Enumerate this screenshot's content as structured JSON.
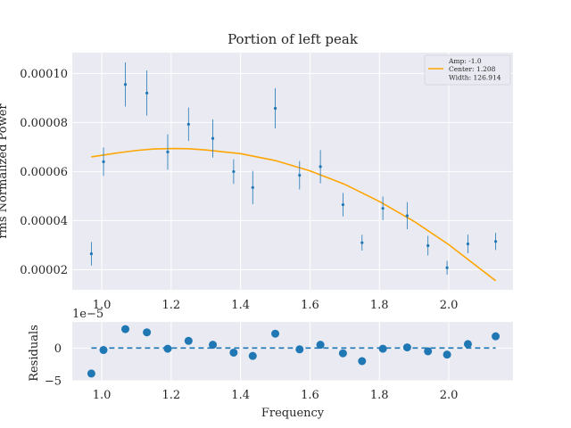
{
  "chart_data": [
    {
      "type": "scatter",
      "title": "Portion of left peak",
      "xlabel": "",
      "ylabel": "rms Normalized Power",
      "xlim": [
        0.915,
        2.185
      ],
      "ylim": [
        1.18e-05,
        0.0001085
      ],
      "xticks": [
        1.0,
        1.2,
        1.4,
        1.6,
        1.8,
        2.0
      ],
      "xtick_labels": [
        "1.0",
        "1.2",
        "1.4",
        "1.6",
        "1.8",
        "2.0"
      ],
      "yticks": [
        2e-05,
        4e-05,
        6e-05,
        8e-05,
        0.0001
      ],
      "ytick_labels": [
        "0.00002",
        "0.00004",
        "0.00006",
        "0.00008",
        "0.00010"
      ],
      "grid": true,
      "legend_position": "top-right",
      "legend": {
        "lines": [
          "Amp: -1.0",
          "Center: 1.208",
          "Width: 126.914"
        ]
      },
      "colors": {
        "points": "#1f77b4",
        "model": "#ffa500",
        "background": "#eaeaf2",
        "grid": "#ffffff"
      },
      "series": [
        {
          "name": "data",
          "kind": "errorbar",
          "x": [
            0.97,
            1.005,
            1.068,
            1.13,
            1.19,
            1.25,
            1.32,
            1.38,
            1.435,
            1.5,
            1.57,
            1.63,
            1.695,
            1.75,
            1.81,
            1.88,
            1.94,
            1.995,
            2.055,
            2.135
          ],
          "y": [
            2.65e-05,
            6.4e-05,
            9.55e-05,
            9.2e-05,
            6.8e-05,
            7.93e-05,
            7.35e-05,
            6e-05,
            5.35e-05,
            8.58e-05,
            5.85e-05,
            6.2e-05,
            4.65e-05,
            3.1e-05,
            4.5e-05,
            4.2e-05,
            2.98e-05,
            2.08e-05,
            3.05e-05,
            3.15e-05
          ],
          "err": [
            4.8e-06,
            5.8e-06,
            9e-06,
            9.2e-06,
            7.2e-06,
            6.8e-06,
            7.8e-06,
            5e-06,
            6.8e-06,
            8.2e-06,
            5.8e-06,
            6.8e-06,
            4.8e-06,
            3.2e-06,
            4.8e-06,
            5.5e-06,
            4e-06,
            2.8e-06,
            3.8e-06,
            3.5e-06
          ]
        },
        {
          "name": "Amp: -1.0",
          "kind": "line",
          "x": [
            0.97,
            1.05,
            1.1,
            1.15,
            1.208,
            1.25,
            1.3,
            1.4,
            1.5,
            1.6,
            1.7,
            1.8,
            1.9,
            2.0,
            2.1,
            2.135
          ],
          "y": [
            6.6e-05,
            6.77e-05,
            6.86e-05,
            6.92e-05,
            6.94e-05,
            6.93e-05,
            6.88e-05,
            6.73e-05,
            6.45e-05,
            6.03e-05,
            5.48e-05,
            4.78e-05,
            3.97e-05,
            3.02e-05,
            1.93e-05,
            1.55e-05
          ]
        }
      ]
    },
    {
      "type": "scatter",
      "title": "",
      "xlabel": "Frequency",
      "ylabel": "Residuals",
      "offset_label": "1e−5",
      "xlim": [
        0.915,
        2.185
      ],
      "ylim": [
        -5.0,
        4.0
      ],
      "xticks": [
        1.0,
        1.2,
        1.4,
        1.6,
        1.8,
        2.0
      ],
      "xtick_labels": [
        "1.0",
        "1.2",
        "1.4",
        "1.6",
        "1.8",
        "2.0"
      ],
      "yticks": [
        -5,
        0
      ],
      "ytick_labels": [
        "−5",
        "0"
      ],
      "grid": true,
      "series": [
        {
          "name": "residuals",
          "kind": "points",
          "x": [
            0.97,
            1.005,
            1.068,
            1.13,
            1.19,
            1.25,
            1.32,
            1.38,
            1.435,
            1.5,
            1.57,
            1.63,
            1.695,
            1.75,
            1.81,
            1.88,
            1.94,
            1.995,
            2.055,
            2.135
          ],
          "y": [
            -3.9,
            -0.3,
            2.9,
            2.4,
            -0.1,
            1.1,
            0.5,
            -0.7,
            -1.2,
            2.2,
            -0.2,
            0.5,
            -0.8,
            -2.0,
            -0.1,
            0.1,
            -0.5,
            -1.0,
            0.6,
            1.8
          ]
        },
        {
          "name": "zero",
          "kind": "dashed-line",
          "x": [
            0.97,
            2.135
          ],
          "y": [
            0,
            0
          ]
        }
      ]
    }
  ]
}
